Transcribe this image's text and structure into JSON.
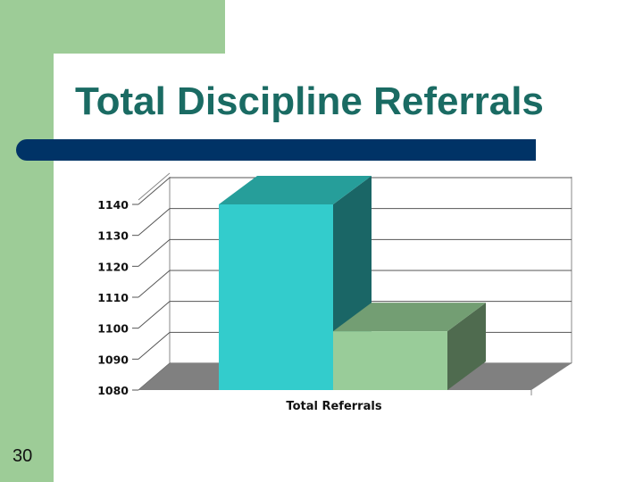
{
  "slide": {
    "title": "Total Discipline Referrals",
    "number": "30"
  },
  "colors": {
    "background_band": "#9dcc97",
    "title_text": "#1a6b63",
    "title_bar": "#003366",
    "series_1_front": "#33cccc",
    "series_1_top": "#269e9a",
    "series_1_side": "#1a6666",
    "series_2_front": "#99cc99",
    "series_2_top": "#739e73",
    "series_2_side": "#4f6b4f",
    "floor": "#808080"
  },
  "chart_data": {
    "type": "bar",
    "title": "",
    "xlabel": "",
    "ylabel": "",
    "categories": [
      "Total Referrals"
    ],
    "series": [
      {
        "values": [
          1140
        ]
      },
      {
        "values": [
          1099
        ]
      }
    ],
    "ylim": [
      1080,
      1140
    ],
    "yticks": [
      "1080",
      "1090",
      "1100",
      "1110",
      "1120",
      "1130",
      "1140"
    ],
    "grid": true,
    "legend": "none",
    "style": "3d-clustered-column"
  }
}
